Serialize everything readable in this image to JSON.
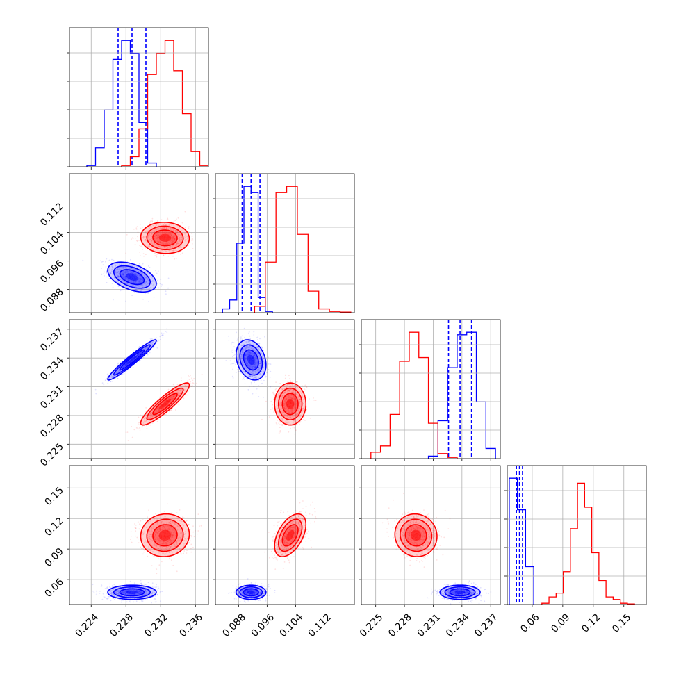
{
  "chart_data": {
    "type": "corner",
    "parameters": 4,
    "colors": {
      "model_a": "#0000ff",
      "model_b": "#ff0000"
    },
    "grid": true,
    "ranges": [
      [
        0.2215,
        0.2375
      ],
      [
        0.0815,
        0.1205
      ],
      [
        0.2235,
        0.238
      ],
      [
        0.0355,
        0.172
      ]
    ],
    "tick_labels": [
      [
        "0.224",
        "0.228",
        "0.232",
        "0.236"
      ],
      [
        "0.088",
        "0.096",
        "0.104",
        "0.112"
      ],
      [
        "0.225",
        "0.228",
        "0.231",
        "0.234",
        "0.237"
      ],
      [
        "0.06",
        "0.09",
        "0.12",
        "0.15"
      ]
    ],
    "ticks": [
      [
        0.224,
        0.228,
        0.232,
        0.236
      ],
      [
        0.088,
        0.096,
        0.104,
        0.112
      ],
      [
        0.225,
        0.228,
        0.231,
        0.234,
        0.237
      ],
      [
        0.06,
        0.09,
        0.12,
        0.15
      ]
    ],
    "series": [
      {
        "color": "#0000ff",
        "mean": [
          0.2287,
          0.0915,
          0.2338,
          0.0475
        ],
        "sd": [
          0.0014,
          0.0021,
          0.00105,
          0.0035
        ],
        "correlation": {
          "0-1": -0.45,
          "0-2": 0.96,
          "1-2": -0.25
        },
        "quantiles": [
          [
            0.2271,
            0.2287,
            0.2303
          ],
          [
            0.089,
            0.0915,
            0.094
          ],
          [
            0.2326,
            0.2338,
            0.235
          ],
          [
            0.0445,
            0.0475,
            0.0505
          ]
        ],
        "histograms": [
          {
            "edges": [
              0.2235,
              0.2245,
              0.2255,
              0.2265,
              0.2275,
              0.2285,
              0.2295,
              0.2305,
              0.2315
            ],
            "counts": [
              0.01,
              0.15,
              0.45,
              0.85,
              1.0,
              0.9,
              0.35,
              0.03
            ]
          },
          {
            "edges": [
              0.0835,
              0.0855,
              0.0875,
              0.0895,
              0.0915,
              0.0935,
              0.0955,
              0.0975
            ],
            "counts": [
              0.03,
              0.1,
              0.55,
              1.0,
              0.95,
              0.12,
              0.01
            ]
          },
          {
            "edges": [
              0.2305,
              0.2315,
              0.2325,
              0.2335,
              0.2345,
              0.2355,
              0.2365,
              0.2375
            ],
            "counts": [
              0.02,
              0.3,
              0.72,
              0.98,
              1.0,
              0.45,
              0.08
            ]
          },
          {
            "edges": [
              0.0375,
              0.0455,
              0.0535,
              0.0615
            ],
            "counts": [
              1.0,
              0.75,
              0.3
            ]
          }
        ]
      },
      {
        "color": "#ff0000",
        "mean": [
          0.2325,
          0.1025,
          0.2292,
          0.1035
        ],
        "sd": [
          0.0014,
          0.0022,
          0.0011,
          0.0105
        ],
        "correlation": {
          "0-1": -0.05,
          "0-2": 0.9,
          "1-3": 0.5,
          "0-3": 0.05,
          "2-3": -0.05
        },
        "histograms": [
          {
            "edges": [
              0.2275,
              0.2285,
              0.2295,
              0.2305,
              0.2315,
              0.2325,
              0.2335,
              0.2345,
              0.2355,
              0.2365,
              0.2375
            ],
            "counts": [
              0.01,
              0.08,
              0.3,
              0.73,
              0.9,
              1.0,
              0.76,
              0.42,
              0.12,
              0.01
            ]
          },
          {
            "edges": [
              0.0925,
              0.0955,
              0.0985,
              0.1015,
              0.1045,
              0.1075,
              0.1105,
              0.1135,
              0.1165,
              0.1195
            ],
            "counts": [
              0.05,
              0.4,
              0.95,
              1.0,
              0.62,
              0.17,
              0.03,
              0.01,
              0.005
            ]
          },
          {
            "edges": [
              0.2245,
              0.2255,
              0.2265,
              0.2275,
              0.2285,
              0.2295,
              0.2305,
              0.2315,
              0.2325,
              0.2335
            ],
            "counts": [
              0.05,
              0.1,
              0.35,
              0.77,
              1.0,
              0.8,
              0.28,
              0.04,
              0.01
            ]
          },
          {
            "edges": [
              0.0695,
              0.0765,
              0.0835,
              0.0905,
              0.0975,
              0.1045,
              0.1115,
              0.1185,
              0.1255,
              0.1325,
              0.1395,
              0.1465,
              0.1535,
              0.1605
            ],
            "counts": [
              0.01,
              0.06,
              0.09,
              0.26,
              0.6,
              0.96,
              0.77,
              0.41,
              0.19,
              0.06,
              0.04,
              0.01,
              0.005
            ]
          }
        ]
      }
    ]
  }
}
